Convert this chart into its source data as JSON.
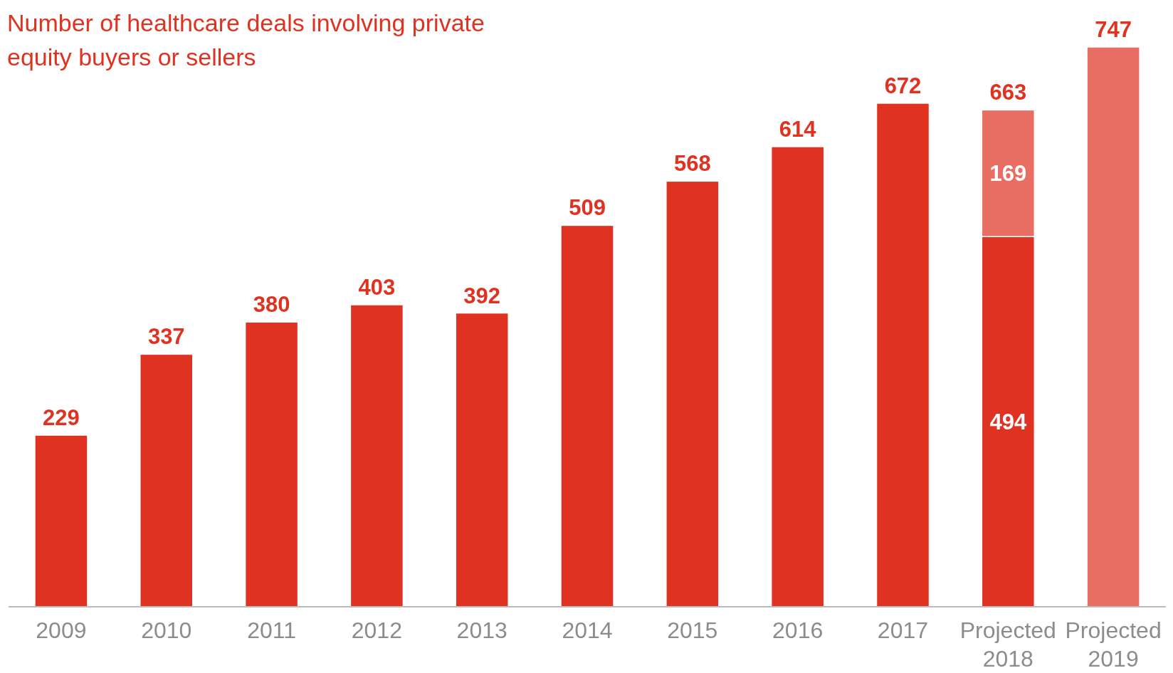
{
  "chart_data": {
    "type": "bar",
    "title": "Number of healthcare deals involving private equity buyers or sellers",
    "categories": [
      "2009",
      "2010",
      "2011",
      "2012",
      "2013",
      "2014",
      "2015",
      "2016",
      "2017",
      "Projected 2018",
      "Projected 2019"
    ],
    "stacked": true,
    "tick_labels": "x",
    "series": [
      {
        "color": "#e03220",
        "values": [
          229,
          337,
          380,
          403,
          392,
          509,
          568,
          614,
          672,
          494,
          null
        ]
      },
      {
        "color": "#e86e63",
        "values": [
          null,
          null,
          null,
          null,
          null,
          null,
          null,
          null,
          null,
          169,
          747
        ]
      }
    ],
    "data_labels": true,
    "totals": [
      null,
      null,
      null,
      null,
      null,
      null,
      null,
      null,
      null,
      "663",
      null
    ]
  }
}
